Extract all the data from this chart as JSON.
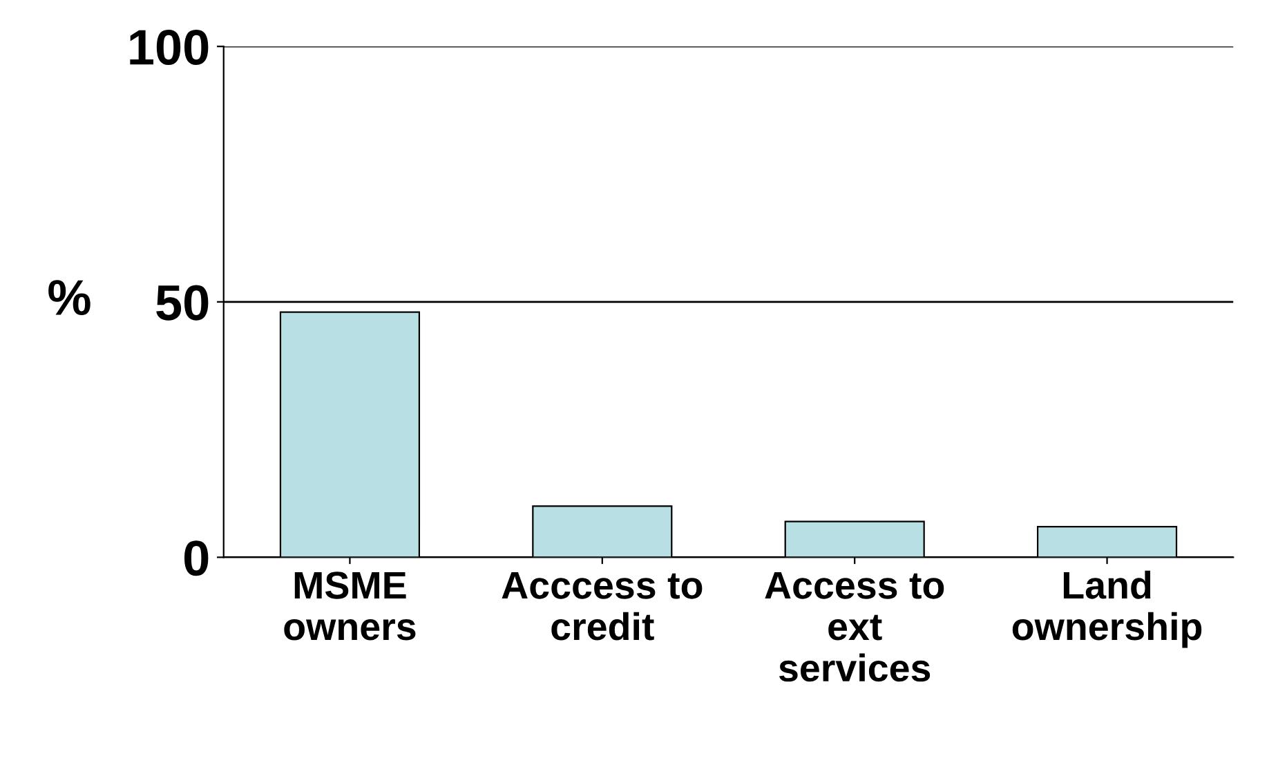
{
  "chart_data": {
    "type": "bar",
    "ylabel": "%",
    "categories": [
      "MSME\nowners",
      "Acccess to\ncredit",
      "Access to\next\nservices",
      "Land\nownership"
    ],
    "values": [
      48,
      10,
      7,
      6
    ],
    "color": "#b8e0e4",
    "ylim": [
      0,
      100
    ],
    "yticks": [
      0,
      50,
      100
    ],
    "grid": "y"
  }
}
